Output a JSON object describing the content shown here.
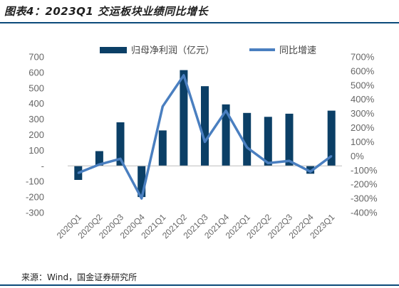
{
  "header": {
    "title": "图表4：2023Q1 交运板块业绩同比增长"
  },
  "footer": {
    "source": "来源：Wind，国金证券研究所"
  },
  "colors": {
    "bar": "#0b3f66",
    "line": "#4a7fc0",
    "rule": "#0b4a7a"
  },
  "chart_data": {
    "type": "bar",
    "categories": [
      "2020Q1",
      "2020Q2",
      "2020Q3",
      "2020Q4",
      "2021Q1",
      "2021Q2",
      "2021Q3",
      "2021Q4",
      "2022Q1",
      "2022Q2",
      "2022Q3",
      "2022Q4",
      "2023Q1"
    ],
    "series": [
      {
        "name": "归母净利润（亿元）",
        "type": "bar",
        "axis": "left",
        "values": [
          -90,
          95,
          280,
          -200,
          228,
          615,
          512,
          395,
          340,
          315,
          335,
          -50,
          355
        ]
      },
      {
        "name": "同比增速",
        "type": "line",
        "axis": "right",
        "values": [
          -120,
          -60,
          -20,
          -300,
          350,
          570,
          100,
          320,
          60,
          -50,
          -35,
          -110,
          0
        ]
      }
    ],
    "left_axis": {
      "ylim": [
        -300,
        700
      ],
      "ticks": [
        "700",
        "600",
        "500",
        "400",
        "300",
        "200",
        "100",
        "-",
        "-100",
        "-200",
        "-300"
      ]
    },
    "right_axis": {
      "ylim": [
        -400,
        700
      ],
      "unit": "%",
      "ticks": [
        "700%",
        "600%",
        "500%",
        "400%",
        "300%",
        "200%",
        "100%",
        "0%",
        "-100%",
        "-200%",
        "-300%",
        "-400%"
      ]
    },
    "legend": {
      "position": "top"
    },
    "grid": false
  }
}
